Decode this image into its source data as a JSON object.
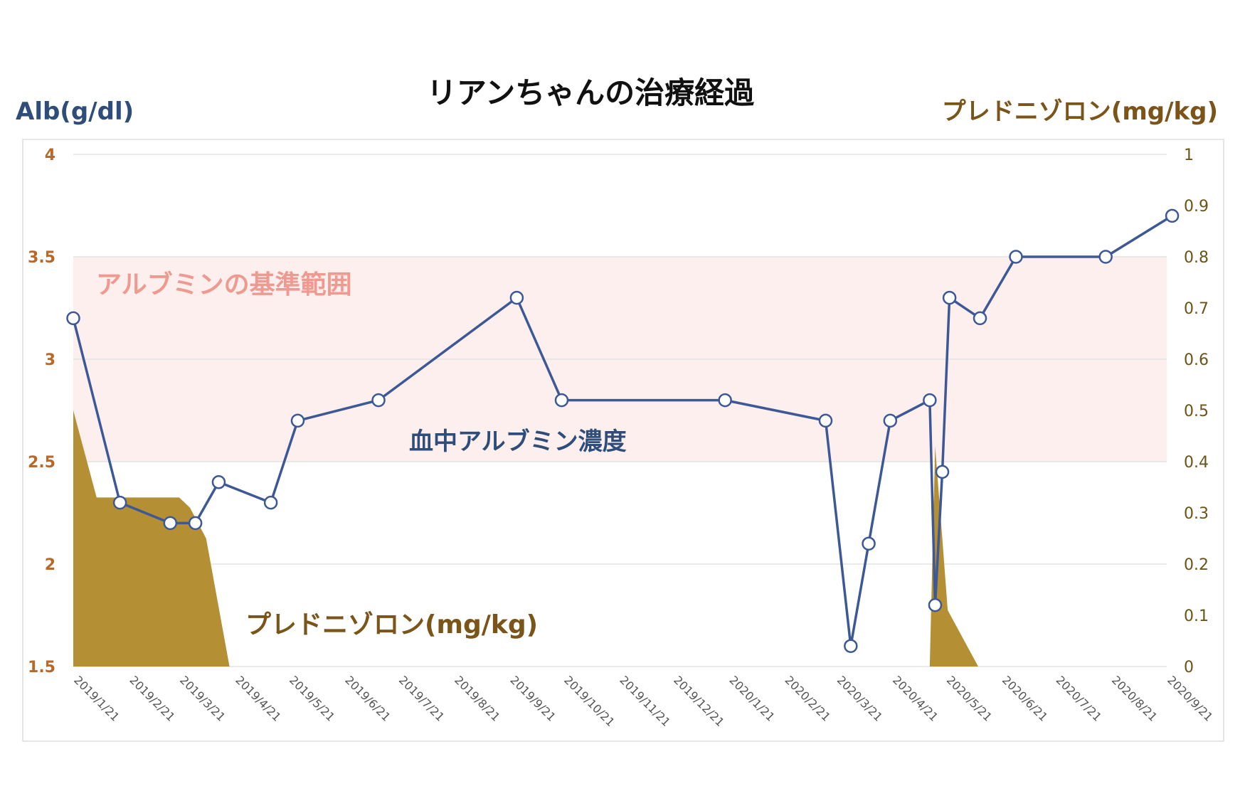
{
  "chart_data": {
    "type": "line",
    "title": "リアンちゃんの治療経過",
    "y_left": {
      "label": "Alb(g/dl)",
      "range": [
        1.5,
        4
      ],
      "ticks": [
        "4",
        "3.5",
        "3",
        "2.5",
        "2",
        "1.5"
      ]
    },
    "y_right": {
      "label": "プレドニゾロン(mg/kg)",
      "range": [
        0,
        1
      ],
      "ticks": [
        "1",
        "0.9",
        "0.8",
        "0.7",
        "0.6",
        "0.5",
        "0.4",
        "0.3",
        "0.2",
        "0.1",
        "0"
      ]
    },
    "x_ticks": [
      "2019/1/21",
      "2019/2/21",
      "2019/3/21",
      "2019/4/21",
      "2019/5/21",
      "2019/6/21",
      "2019/7/21",
      "2019/8/21",
      "2019/9/21",
      "2019/10/21",
      "2019/11/21",
      "2019/12/21",
      "2020/1/21",
      "2020/2/21",
      "2020/3/21",
      "2020/4/21",
      "2020/5/21",
      "2020/6/21",
      "2020/7/21",
      "2020/8/21",
      "2020/9/21"
    ],
    "reference_band": {
      "label": "アルブミンの基準範囲",
      "y_from": 2.5,
      "y_to": 3.5,
      "color": "#fcefee"
    },
    "grid": true,
    "series": [
      {
        "name": "血中アルブミン濃度",
        "type": "line",
        "axis": "left",
        "color": "#3d5896",
        "points": [
          [
            "2019-01-21",
            3.2
          ],
          [
            "2019-02-16",
            2.3
          ],
          [
            "2019-03-16",
            2.2
          ],
          [
            "2019-03-30",
            2.2
          ],
          [
            "2019-04-12",
            2.4
          ],
          [
            "2019-05-11",
            2.3
          ],
          [
            "2019-05-26",
            2.7
          ],
          [
            "2019-07-10",
            2.8
          ],
          [
            "2019-09-25",
            3.3
          ],
          [
            "2019-10-20",
            2.8
          ],
          [
            "2020-01-19",
            2.8
          ],
          [
            "2020-03-15",
            2.7
          ],
          [
            "2020-03-29",
            1.6
          ],
          [
            "2020-04-08",
            2.1
          ],
          [
            "2020-04-20",
            2.7
          ],
          [
            "2020-05-12",
            2.8
          ],
          [
            "2020-05-15",
            1.8
          ],
          [
            "2020-05-19",
            2.45
          ],
          [
            "2020-05-23",
            3.3
          ],
          [
            "2020-06-09",
            3.2
          ],
          [
            "2020-06-29",
            3.5
          ],
          [
            "2020-08-18",
            3.5
          ],
          [
            "2020-09-24",
            3.7
          ]
        ]
      },
      {
        "name": "プレドニゾロン(mg/kg)",
        "type": "area",
        "axis": "right",
        "color": "#b58f33",
        "points": [
          [
            "2019-01-21",
            0.5
          ],
          [
            "2019-02-03",
            0.33
          ],
          [
            "2019-03-21",
            0.33
          ],
          [
            "2019-03-27",
            0.31
          ],
          [
            "2019-04-05",
            0.25
          ],
          [
            "2019-04-18",
            0.0
          ],
          [
            "2020-05-12",
            0.0
          ],
          [
            "2020-05-15",
            0.43
          ],
          [
            "2020-05-19",
            0.25
          ],
          [
            "2020-05-22",
            0.11
          ],
          [
            "2020-06-08",
            0.0
          ]
        ]
      }
    ],
    "annotations": {
      "alb_label": "血中アルブミン濃度",
      "pred_label": "プレドニゾロン(mg/kg)"
    }
  }
}
